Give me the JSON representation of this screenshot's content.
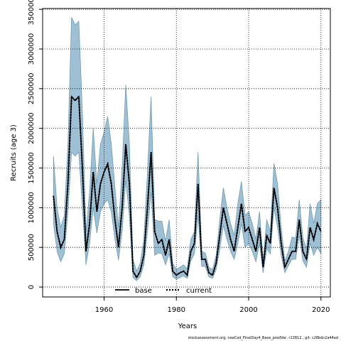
{
  "chart_data": {
    "type": "line",
    "xlabel": "Years",
    "ylabel": "Recruits (age 3)",
    "footer": "stockassessment.org, neaCod_FinalDay4_Base_predVar, r13812 , git: c28bdc2a44ad",
    "x": [
      1946,
      1947,
      1948,
      1949,
      1950,
      1951,
      1952,
      1953,
      1954,
      1955,
      1956,
      1957,
      1958,
      1959,
      1960,
      1961,
      1962,
      1963,
      1964,
      1965,
      1966,
      1967,
      1968,
      1969,
      1970,
      1971,
      1972,
      1973,
      1974,
      1975,
      1976,
      1977,
      1978,
      1979,
      1980,
      1981,
      1982,
      1983,
      1984,
      1985,
      1986,
      1987,
      1988,
      1989,
      1990,
      1991,
      1992,
      1993,
      1994,
      1995,
      1996,
      1997,
      1998,
      1999,
      2000,
      2001,
      2002,
      2003,
      2004,
      2005,
      2006,
      2007,
      2008,
      2009,
      2010,
      2011,
      2012,
      2013,
      2014,
      2015,
      2016,
      2017,
      2018,
      2019,
      2020
    ],
    "series": [
      {
        "name": "base",
        "color": "#000000",
        "dash": false,
        "values": [
          1150000,
          700000,
          500000,
          600000,
          1300000,
          2400000,
          2350000,
          2400000,
          1500000,
          450000,
          800000,
          1450000,
          950000,
          1300000,
          1450000,
          1550000,
          1300000,
          850000,
          500000,
          1000000,
          1800000,
          1300000,
          200000,
          120000,
          200000,
          400000,
          1000000,
          1700000,
          700000,
          550000,
          600000,
          400000,
          600000,
          200000,
          150000,
          180000,
          200000,
          150000,
          450000,
          550000,
          1300000,
          350000,
          350000,
          180000,
          150000,
          300000,
          650000,
          1000000,
          800000,
          600000,
          450000,
          750000,
          1050000,
          700000,
          750000,
          600000,
          450000,
          750000,
          250000,
          650000,
          550000,
          1250000,
          1000000,
          550000,
          250000,
          350000,
          450000,
          450000,
          850000,
          450000,
          350000,
          750000,
          600000,
          800000,
          700000
        ]
      },
      {
        "name": "current",
        "color": "#000000",
        "dash": true,
        "values": [
          1150000,
          700000,
          500000,
          600000,
          1300000,
          2400000,
          2350000,
          2400000,
          1500000,
          450000,
          800000,
          1450000,
          950000,
          1300000,
          1450000,
          1550000,
          1300000,
          850000,
          500000,
          1000000,
          1800000,
          1300000,
          200000,
          120000,
          200000,
          400000,
          1000000,
          1700000,
          700000,
          550000,
          600000,
          400000,
          600000,
          200000,
          150000,
          180000,
          200000,
          150000,
          450000,
          550000,
          1300000,
          350000,
          350000,
          180000,
          150000,
          300000,
          650000,
          1000000,
          800000,
          600000,
          450000,
          750000,
          1050000,
          700000,
          750000,
          600000,
          450000,
          750000,
          250000,
          650000,
          550000,
          1250000,
          1000000,
          550000,
          250000,
          350000,
          450000,
          450000,
          850000,
          450000,
          350000,
          750000,
          600000,
          800000,
          700000
        ]
      }
    ],
    "band": {
      "color": "#9dc0d4",
      "upper": [
        1650000,
        1000000,
        750000,
        900000,
        1800000,
        3400000,
        3300000,
        3350000,
        2200000,
        700000,
        1200000,
        2000000,
        1300000,
        1800000,
        1950000,
        2150000,
        1800000,
        1250000,
        750000,
        1500000,
        2550000,
        1800000,
        350000,
        200000,
        300000,
        600000,
        1450000,
        2400000,
        850000,
        830000,
        830000,
        580000,
        850000,
        300000,
        220000,
        250000,
        280000,
        230000,
        600000,
        700000,
        1700000,
        450000,
        430000,
        250000,
        220000,
        400000,
        850000,
        1250000,
        1000000,
        800000,
        650000,
        1050000,
        1330000,
        900000,
        950000,
        800000,
        600000,
        950000,
        350000,
        850000,
        700000,
        1560000,
        1300000,
        750000,
        330000,
        450000,
        630000,
        620000,
        1100000,
        620000,
        480000,
        1050000,
        800000,
        1050000,
        1100000
      ],
      "lower": [
        800000,
        450000,
        320000,
        420000,
        950000,
        1700000,
        1650000,
        1700000,
        1000000,
        280000,
        550000,
        1000000,
        680000,
        950000,
        1050000,
        1100000,
        950000,
        600000,
        340000,
        700000,
        1350000,
        900000,
        120000,
        80000,
        130000,
        280000,
        700000,
        1200000,
        400000,
        430000,
        420000,
        280000,
        420000,
        130000,
        100000,
        120000,
        140000,
        110000,
        330000,
        420000,
        900000,
        260000,
        260000,
        130000,
        110000,
        220000,
        470000,
        780000,
        600000,
        450000,
        350000,
        550000,
        800000,
        500000,
        550000,
        450000,
        320000,
        550000,
        180000,
        480000,
        420000,
        1000000,
        750000,
        400000,
        180000,
        270000,
        350000,
        350000,
        650000,
        330000,
        250000,
        550000,
        400000,
        500000,
        420000
      ]
    },
    "xlim": [
      1943,
      2022.6
    ],
    "ylim": [
      -125000,
      3510000
    ],
    "xticks": [
      1960,
      1980,
      2000,
      2020
    ],
    "yticks": [
      0,
      500000,
      1000000,
      1500000,
      2000000,
      2500000,
      3000000,
      3500000
    ],
    "grid": true,
    "legend": "bottom"
  }
}
